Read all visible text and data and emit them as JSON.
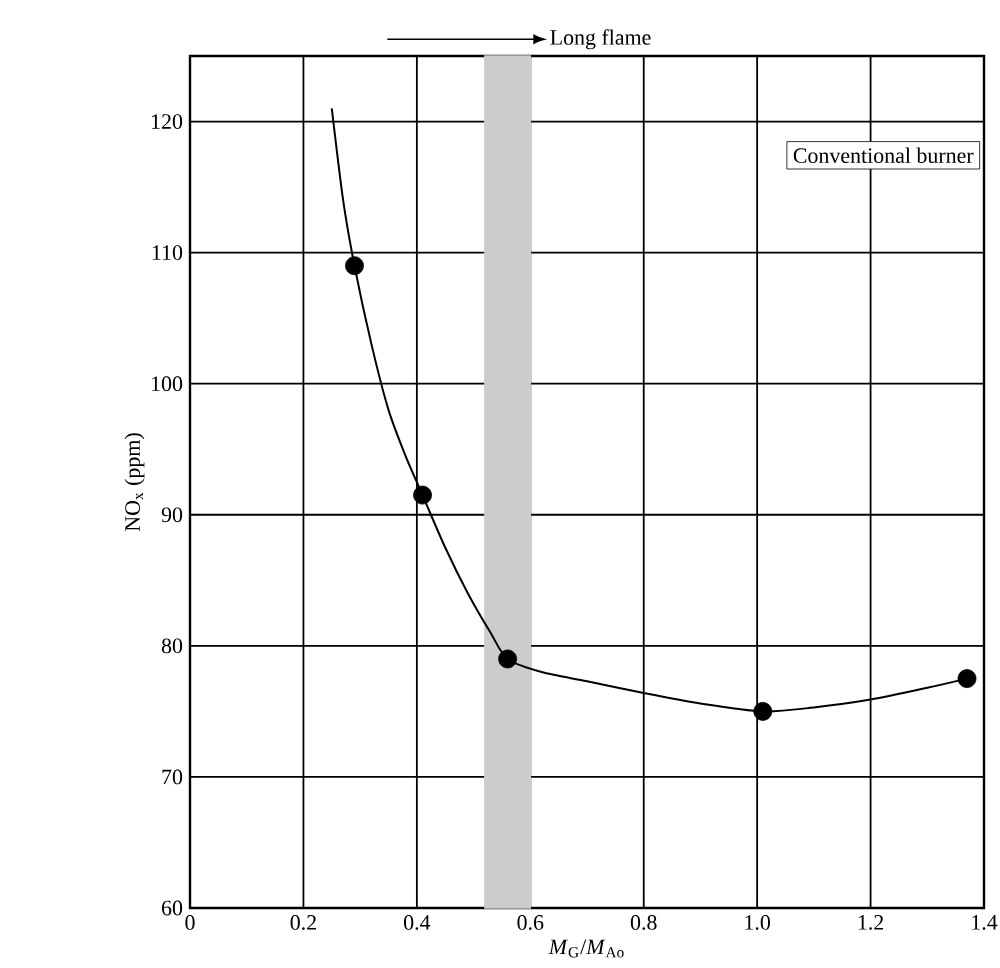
{
  "chart_data": {
    "type": "scatter",
    "xlabel": "*M*$_{G}$/*M*$_{Ao}$",
    "ylabel": "NO$_{x}$ (ppm)",
    "xlim": [
      0,
      1.4
    ],
    "ylim": [
      60,
      125
    ],
    "xticks": [
      0,
      {
        "value": 0.2,
        "label": "0.2"
      },
      {
        "value": 0.4,
        "label": "0.4"
      },
      {
        "value": 0.6,
        "label": "0.6"
      },
      {
        "value": 0.8,
        "label": "0.8"
      },
      {
        "value": 1.0,
        "label": "1.0"
      },
      {
        "value": 1.2,
        "label": "1.2"
      },
      {
        "value": 1.4,
        "label": "1.4"
      }
    ],
    "yticks": [
      60,
      70,
      80,
      90,
      100,
      110,
      120
    ],
    "grid": true,
    "series": [
      {
        "type": "scatter",
        "color": "#000000",
        "marker": "circle",
        "x": [
          0.29,
          0.41,
          0.56,
          1.01,
          1.37
        ],
        "values": [
          109,
          91.5,
          79,
          75,
          77.5
        ]
      },
      {
        "type": "line",
        "color": "#000000",
        "marker": "none",
        "line_style": "solid",
        "x": [
          0.25,
          0.27,
          0.29,
          0.32,
          0.35,
          0.38,
          0.41,
          0.45,
          0.49,
          0.53,
          0.56,
          0.62,
          0.7,
          0.8,
          0.9,
          1.01,
          1.1,
          1.2,
          1.3,
          1.37
        ],
        "values": [
          121,
          114,
          109,
          103,
          98,
          94.5,
          91.5,
          87.5,
          84,
          81,
          79,
          78,
          77.3,
          76.4,
          75.6,
          75,
          75.3,
          75.9,
          76.8,
          77.5
        ]
      }
    ],
    "bands": [
      {
        "axis": "x",
        "from": 0.52,
        "to": 0.6,
        "color": "#cccccc"
      }
    ],
    "annotations": [
      "Long flame",
      "Conventional burner"
    ]
  }
}
